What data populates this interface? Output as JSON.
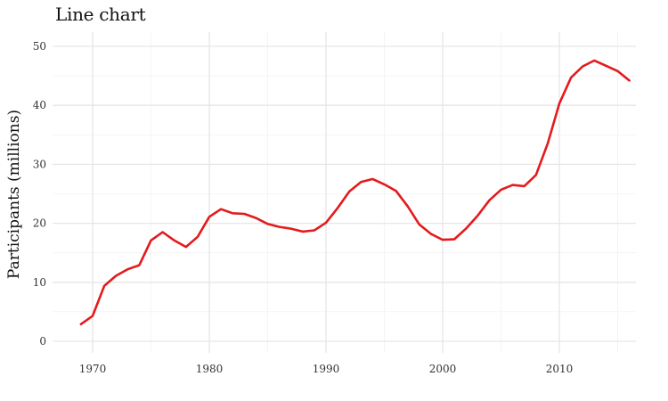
{
  "chart_data": {
    "type": "line",
    "title": "Line chart",
    "xlabel": "",
    "ylabel": "Participants (millions)",
    "xlim": [
      1969,
      2016
    ],
    "ylim": [
      0,
      50
    ],
    "x_ticks": [
      1970,
      1980,
      1990,
      2000,
      2010
    ],
    "y_ticks": [
      0,
      10,
      20,
      30,
      40,
      50
    ],
    "grid": true,
    "line_color": "#e41a1c",
    "series": [
      {
        "x": [
          1969,
          1970,
          1971,
          1972,
          1973,
          1974,
          1975,
          1976,
          1977,
          1978,
          1979,
          1980,
          1981,
          1982,
          1983,
          1984,
          1985,
          1986,
          1987,
          1988,
          1989,
          1990,
          1991,
          1992,
          1993,
          1994,
          1995,
          1996,
          1997,
          1998,
          1999,
          2000,
          2001,
          2002,
          2003,
          2004,
          2005,
          2006,
          2007,
          2008,
          2009,
          2010,
          2011,
          2012,
          2013,
          2014,
          2015,
          2016
        ],
        "values": [
          2.9,
          4.3,
          9.4,
          11.1,
          12.2,
          12.9,
          17.1,
          18.5,
          17.1,
          16.0,
          17.7,
          21.1,
          22.4,
          21.7,
          21.6,
          20.9,
          19.9,
          19.4,
          19.1,
          18.6,
          18.8,
          20.1,
          22.6,
          25.4,
          27.0,
          27.5,
          26.6,
          25.5,
          22.9,
          19.8,
          18.2,
          17.2,
          17.3,
          19.1,
          21.3,
          23.9,
          25.7,
          26.5,
          26.3,
          28.2,
          33.5,
          40.3,
          44.7,
          46.6,
          47.6,
          46.7,
          45.8,
          44.2
        ]
      }
    ]
  }
}
